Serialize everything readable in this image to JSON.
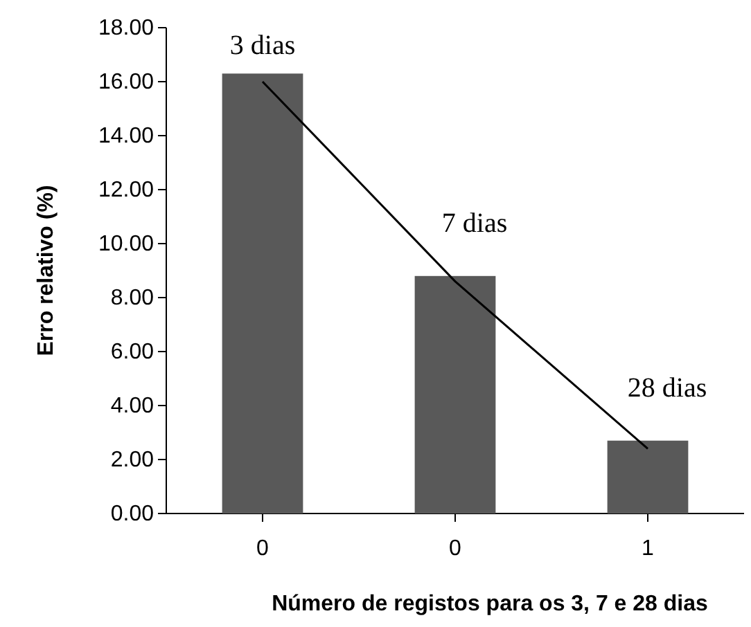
{
  "chart_data": {
    "type": "bar",
    "xlabel": "Número de registos para os 3, 7 e 28 dias",
    "ylabel": "Erro relativo (%)",
    "categories": [
      "0",
      "0",
      "1"
    ],
    "series": [
      {
        "color": "#595959",
        "values": [
          16.3,
          8.8,
          2.7
        ]
      },
      {
        "type": "line",
        "color": "#000000",
        "values": [
          16.0,
          8.6,
          2.4
        ]
      }
    ],
    "ylim": [
      0,
      18
    ],
    "yticks": [
      {
        "value": 0,
        "label": "0.00"
      },
      {
        "value": 2,
        "label": "2.00"
      },
      {
        "value": 4,
        "label": "4.00"
      },
      {
        "value": 6,
        "label": "6.00"
      },
      {
        "value": 8,
        "label": "8.00"
      },
      {
        "value": 10,
        "label": "10.00"
      },
      {
        "value": 12,
        "label": "12.00"
      },
      {
        "value": 14,
        "label": "14.00"
      },
      {
        "value": 16,
        "label": "16.00"
      },
      {
        "value": 18,
        "label": "18.00"
      }
    ],
    "annotations": [
      "3 dias",
      "7 dias",
      "28 dias"
    ],
    "grid": false
  }
}
